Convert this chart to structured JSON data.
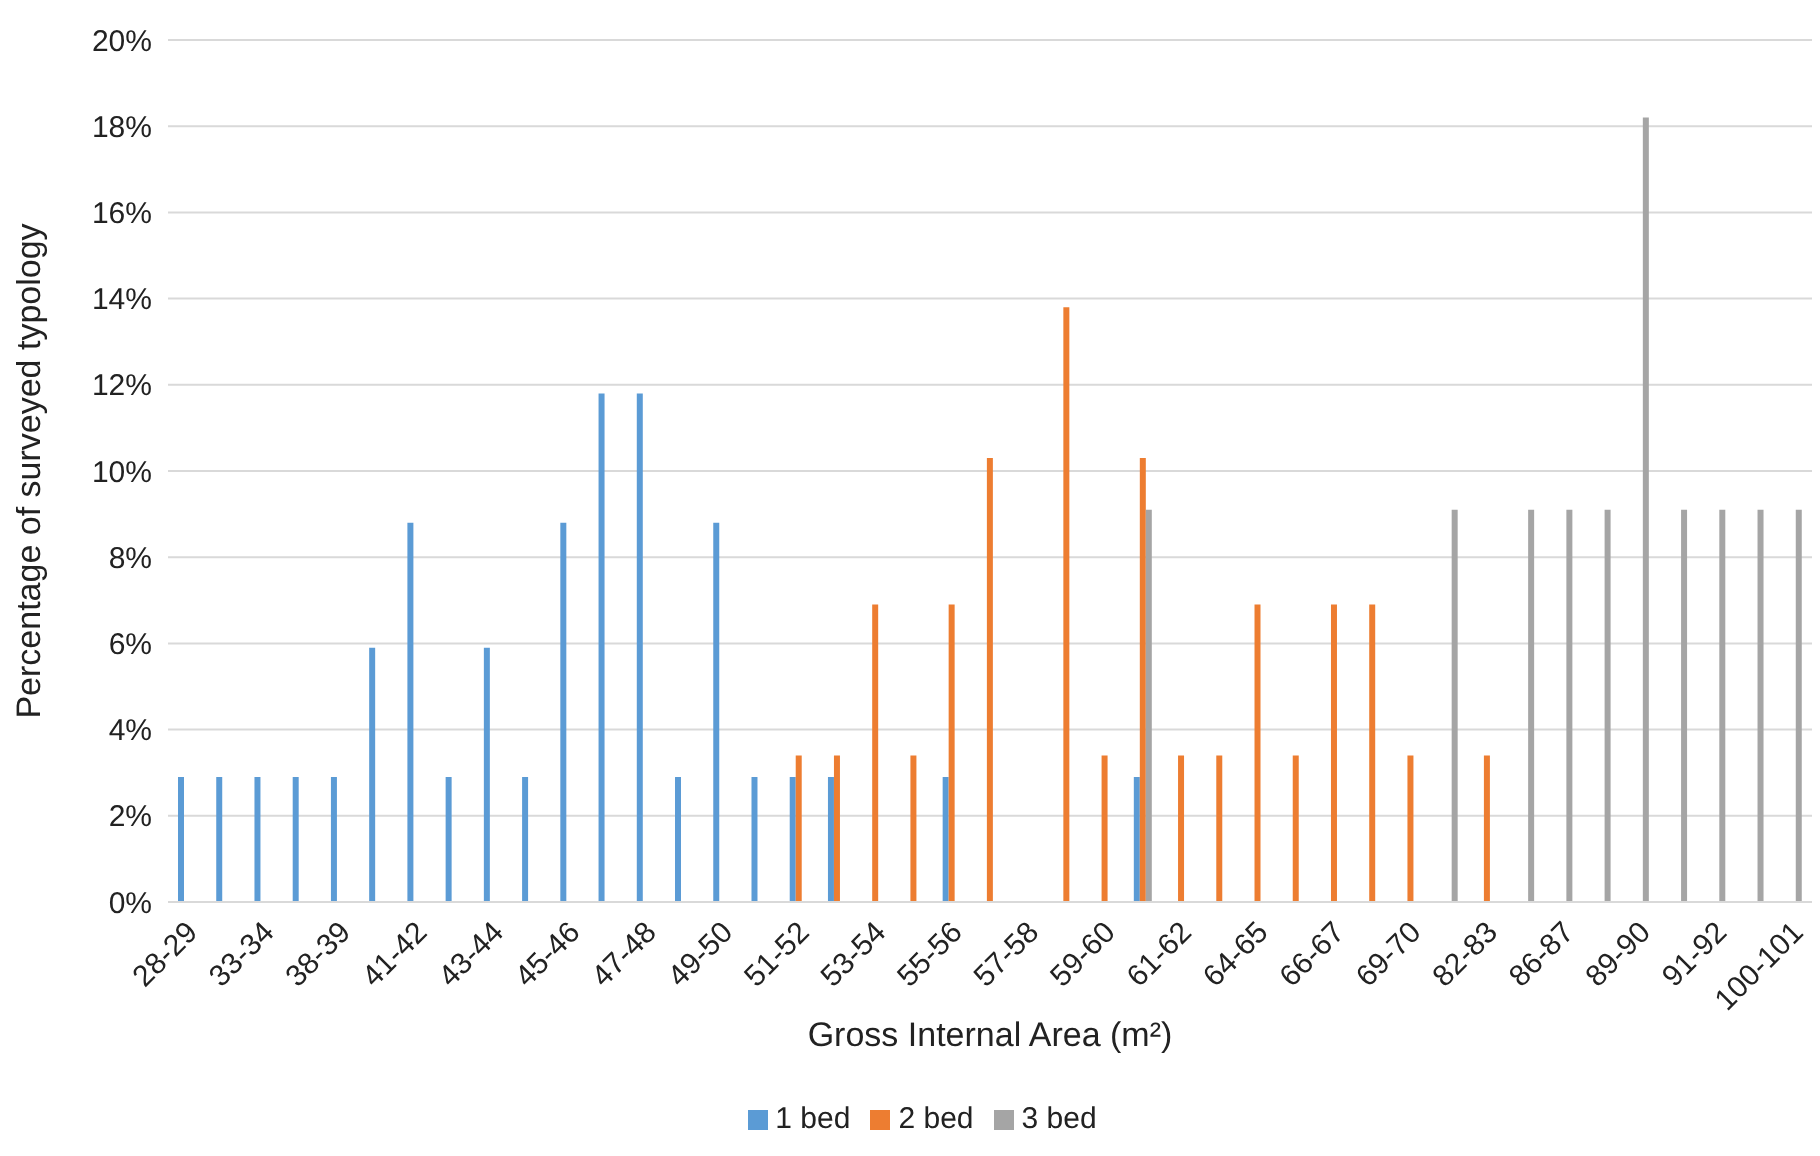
{
  "chart_data": {
    "type": "bar",
    "xlabel": "Gross Internal Area (m²)",
    "ylabel": "Percentage of surveyed typology",
    "categories": [
      "28-29",
      null,
      "33-34",
      null,
      "38-39",
      null,
      "41-42",
      null,
      "43-44",
      null,
      "45-46",
      null,
      "47-48",
      null,
      "49-50",
      null,
      "51-52",
      null,
      "53-54",
      null,
      "55-56",
      null,
      "57-58",
      null,
      "59-60",
      null,
      "61-62",
      null,
      "64-65",
      null,
      "66-67",
      null,
      "69-70",
      null,
      "82-83",
      null,
      "86-87",
      null,
      "89-90",
      null,
      "91-92",
      null,
      "100-101"
    ],
    "series": [
      {
        "name": "1 bed",
        "color": "#5b9bd5",
        "values": [
          2.9,
          2.9,
          2.9,
          2.9,
          2.9,
          5.9,
          8.8,
          2.9,
          5.9,
          2.9,
          8.8,
          11.8,
          11.8,
          2.9,
          8.8,
          2.9,
          2.9,
          2.9,
          null,
          null,
          2.9,
          null,
          null,
          null,
          null,
          2.9,
          null,
          null,
          null,
          null,
          null,
          null,
          null,
          null,
          null,
          null,
          null,
          null,
          null,
          null,
          null,
          null,
          null
        ]
      },
      {
        "name": "2 bed",
        "color": "#ed7d31",
        "values": [
          null,
          null,
          null,
          null,
          null,
          null,
          null,
          null,
          null,
          null,
          null,
          null,
          null,
          null,
          null,
          null,
          3.4,
          3.4,
          6.9,
          3.4,
          6.9,
          10.3,
          null,
          13.8,
          3.4,
          10.3,
          3.4,
          3.4,
          6.9,
          3.4,
          6.9,
          6.9,
          3.4,
          null,
          3.4,
          null,
          null,
          null,
          null,
          null,
          null,
          null,
          null
        ]
      },
      {
        "name": "3 bed",
        "color": "#a5a5a5",
        "values": [
          null,
          null,
          null,
          null,
          null,
          null,
          null,
          null,
          null,
          null,
          null,
          null,
          null,
          null,
          null,
          null,
          null,
          null,
          null,
          null,
          null,
          null,
          null,
          null,
          null,
          9.1,
          null,
          null,
          null,
          null,
          null,
          null,
          null,
          9.1,
          null,
          9.1,
          9.1,
          9.1,
          18.2,
          9.1,
          9.1,
          9.1,
          9.1
        ]
      }
    ],
    "ylim": [
      0,
      20
    ],
    "yticks": [
      {
        "value": 0,
        "label": "0%"
      },
      {
        "value": 2,
        "label": "2%"
      },
      {
        "value": 4,
        "label": "4%"
      },
      {
        "value": 6,
        "label": "6%"
      },
      {
        "value": 8,
        "label": "8%"
      },
      {
        "value": 10,
        "label": "10%"
      },
      {
        "value": 12,
        "label": "12%"
      },
      {
        "value": 14,
        "label": "14%"
      },
      {
        "value": 16,
        "label": "16%"
      },
      {
        "value": 18,
        "label": "18%"
      },
      {
        "value": 20,
        "label": "20%"
      }
    ],
    "grid": "y",
    "legend": "bottom"
  }
}
